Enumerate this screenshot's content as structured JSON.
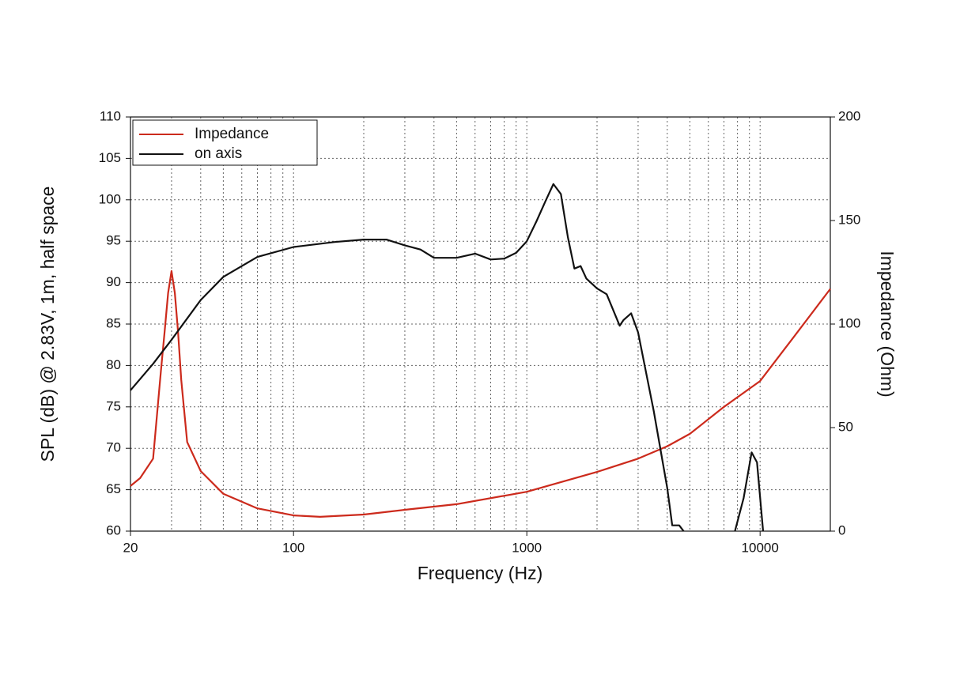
{
  "chart_data": {
    "type": "line",
    "xlabel": "Frequency (Hz)",
    "ylabel": "SPL (dB) @ 2.83V, 1m, half space",
    "y2label": "Impedance (Ohm)",
    "xscale": "log",
    "xlim": [
      20,
      20000
    ],
    "xticks": [
      20,
      100,
      1000,
      10000
    ],
    "xminorticks": [
      30,
      40,
      50,
      60,
      70,
      80,
      90,
      200,
      300,
      400,
      500,
      600,
      700,
      800,
      900,
      2000,
      3000,
      4000,
      5000,
      6000,
      7000,
      8000,
      9000
    ],
    "ylim": [
      60,
      110
    ],
    "yticks": [
      60,
      65,
      70,
      75,
      80,
      85,
      90,
      95,
      100,
      105,
      110
    ],
    "y2lim": [
      0,
      200
    ],
    "y2ticks": [
      0,
      50,
      100,
      150,
      200
    ],
    "grid": true,
    "legend": "upper left",
    "series": [
      {
        "name": "Impedance",
        "color": "#cc2a1c",
        "axis": "y2",
        "x": [
          20,
          22,
          25,
          27,
          28,
          29,
          30,
          31,
          32,
          33,
          35,
          40,
          50,
          70,
          100,
          130,
          200,
          300,
          500,
          1000,
          2000,
          3000,
          4000,
          5000,
          7000,
          10000,
          14000,
          20000
        ],
        "values": [
          21.8,
          25.6,
          35,
          77,
          96,
          115,
          125.6,
          115,
          96,
          73,
          43,
          29,
          18,
          11,
          7.6,
          6.9,
          8,
          10.3,
          13,
          19,
          28.6,
          35,
          41,
          47,
          60,
          72.5,
          94,
          117
        ]
      },
      {
        "name": "on axis",
        "color": "#111111",
        "x": [
          20,
          25,
          30,
          40,
          50,
          70,
          100,
          150,
          200,
          250,
          300,
          350,
          400,
          500,
          600,
          700,
          800,
          900,
          1000,
          1100,
          1200,
          1300,
          1400,
          1500,
          1600,
          1700,
          1800,
          2000,
          2200,
          2500,
          2600,
          2800,
          3000,
          3500,
          4000,
          4200,
          4500,
          4700,
          6000,
          7800,
          8500,
          9200,
          9700,
          10300
        ],
        "values": [
          77.0,
          80.2,
          83.1,
          87.9,
          90.7,
          93.1,
          94.3,
          94.9,
          95.2,
          95.2,
          94.5,
          94.0,
          93.0,
          93.0,
          93.5,
          92.8,
          92.9,
          93.6,
          95.0,
          97.4,
          99.8,
          101.9,
          100.7,
          95.5,
          91.7,
          92.0,
          90.5,
          89.3,
          88.6,
          84.8,
          85.5,
          86.3,
          84.0,
          74.5,
          65.2,
          60.7,
          60.7,
          60,
          null,
          60,
          64,
          69.5,
          68.3,
          60
        ]
      }
    ]
  }
}
